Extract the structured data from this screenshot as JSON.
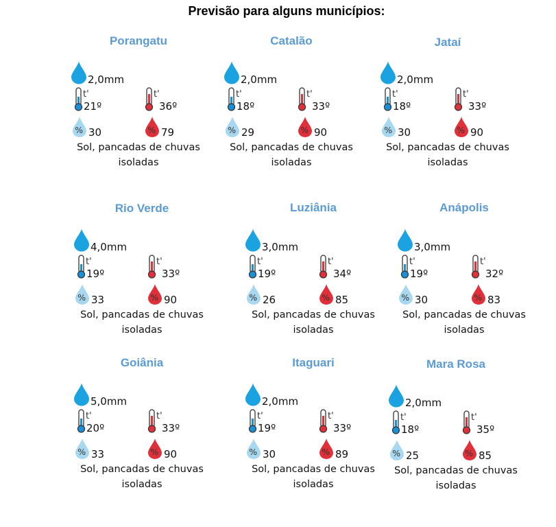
{
  "title": "Previsão para alguns municípios:",
  "colors": {
    "city": "#5b9bd5",
    "rain": "#1aa3e0",
    "cold": "#1a8fd6",
    "hot": "#e0303a",
    "humid_low": "#a8d8ef",
    "humid_high": "#e0303a"
  },
  "cities": [
    {
      "name": "Porangatu",
      "rain": "2,0mm",
      "min": "21º",
      "max": "36º",
      "hum_min": "30",
      "hum_max": "79",
      "desc1": "Sol, pancadas de chuvas",
      "desc2": "isoladas"
    },
    {
      "name": "Catalão",
      "rain": "2,0mm",
      "min": "18º",
      "max": "33º",
      "hum_min": "29",
      "hum_max": "90",
      "desc1": "Sol, pancadas de chuvas",
      "desc2": "isoladas"
    },
    {
      "name": "Jataí",
      "rain": "2,0mm",
      "min": "18º",
      "max": "33º",
      "hum_min": "30",
      "hum_max": "90",
      "desc1": "Sol, pancadas de chuvas",
      "desc2": "isoladas"
    },
    {
      "name": "Rio Verde",
      "rain": "4,0mm",
      "min": "19º",
      "max": "33º",
      "hum_min": "33",
      "hum_max": "90",
      "desc1": "Sol, pancadas de chuvas",
      "desc2": "isoladas"
    },
    {
      "name": "Luziânia",
      "rain": "3,0mm",
      "min": "19º",
      "max": "34º",
      "hum_min": "26",
      "hum_max": "85",
      "desc1": "Sol, pancadas de chuvas",
      "desc2": "isoladas"
    },
    {
      "name": "Anápolis",
      "rain": "3,0mm",
      "min": "19º",
      "max": "32º",
      "hum_min": "30",
      "hum_max": "83",
      "desc1": "Sol, pancadas de chuvas",
      "desc2": "isoladas"
    },
    {
      "name": "Goiânia",
      "rain": "5,0mm",
      "min": "20º",
      "max": "33º",
      "hum_min": "33",
      "hum_max": "90",
      "desc1": "Sol, pancadas de chuvas",
      "desc2": "isoladas"
    },
    {
      "name": "Itaguari",
      "rain": "2,0mm",
      "min": "19º",
      "max": "33º",
      "hum_min": "30",
      "hum_max": "89",
      "desc1": "Sol, pancadas de chuvas",
      "desc2": "isoladas"
    },
    {
      "name": "Mara Rosa",
      "rain": "2,0mm",
      "min": "18º",
      "max": "35º",
      "hum_min": "25",
      "hum_max": "85",
      "desc1": "Sol, pancadas de chuvas",
      "desc2": "isoladas"
    }
  ]
}
